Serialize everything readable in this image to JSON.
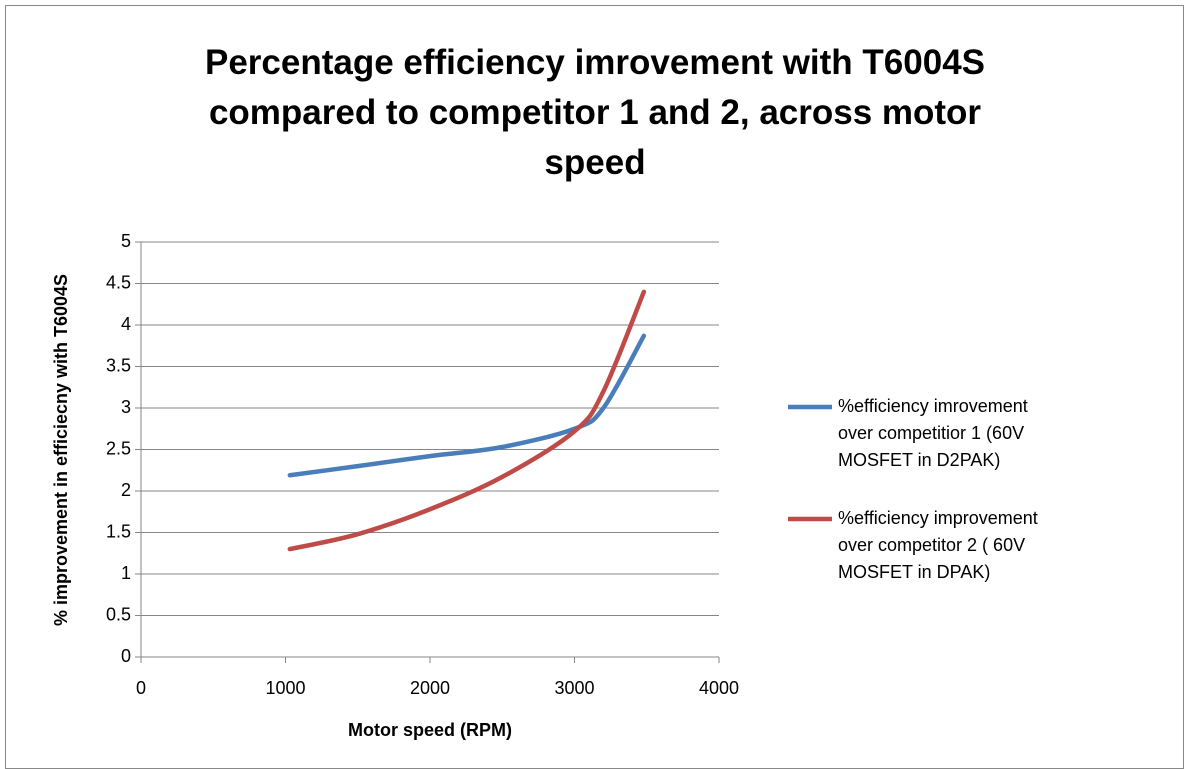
{
  "chart_data": {
    "type": "line",
    "title": "Percentage efficiency imrovement with T6004S compared to competitor 1 and 2, across motor speed",
    "x_label": "Motor speed (RPM)",
    "y_label": "% improvement in efficiecny with T6004S",
    "series": [
      {
        "name": "%efficiency imrovement over competitior 1 (60V MOSFET in D2PAK)",
        "color": "#4a7ebb",
        "x": [
          1030,
          1500,
          2000,
          2500,
          3000,
          3200,
          3480
        ],
        "values": [
          2.19,
          2.3,
          2.42,
          2.53,
          2.75,
          3.0,
          3.87
        ]
      },
      {
        "name": "%efficiency improvement over competitor 2 ( 60V MOSFET in DPAK)",
        "color": "#be4b48",
        "x": [
          1030,
          1500,
          2000,
          2500,
          3000,
          3200,
          3480
        ],
        "values": [
          1.3,
          1.48,
          1.78,
          2.17,
          2.72,
          3.2,
          4.4
        ]
      }
    ],
    "xlim": [
      0,
      4000
    ],
    "xticks": [
      0,
      1000,
      2000,
      3000,
      4000
    ],
    "ylim": [
      0,
      5
    ],
    "yticks": [
      0,
      0.5,
      1,
      1.5,
      2,
      2.5,
      3,
      3.5,
      4,
      4.5,
      5
    ],
    "grid": true,
    "legend": "right"
  }
}
